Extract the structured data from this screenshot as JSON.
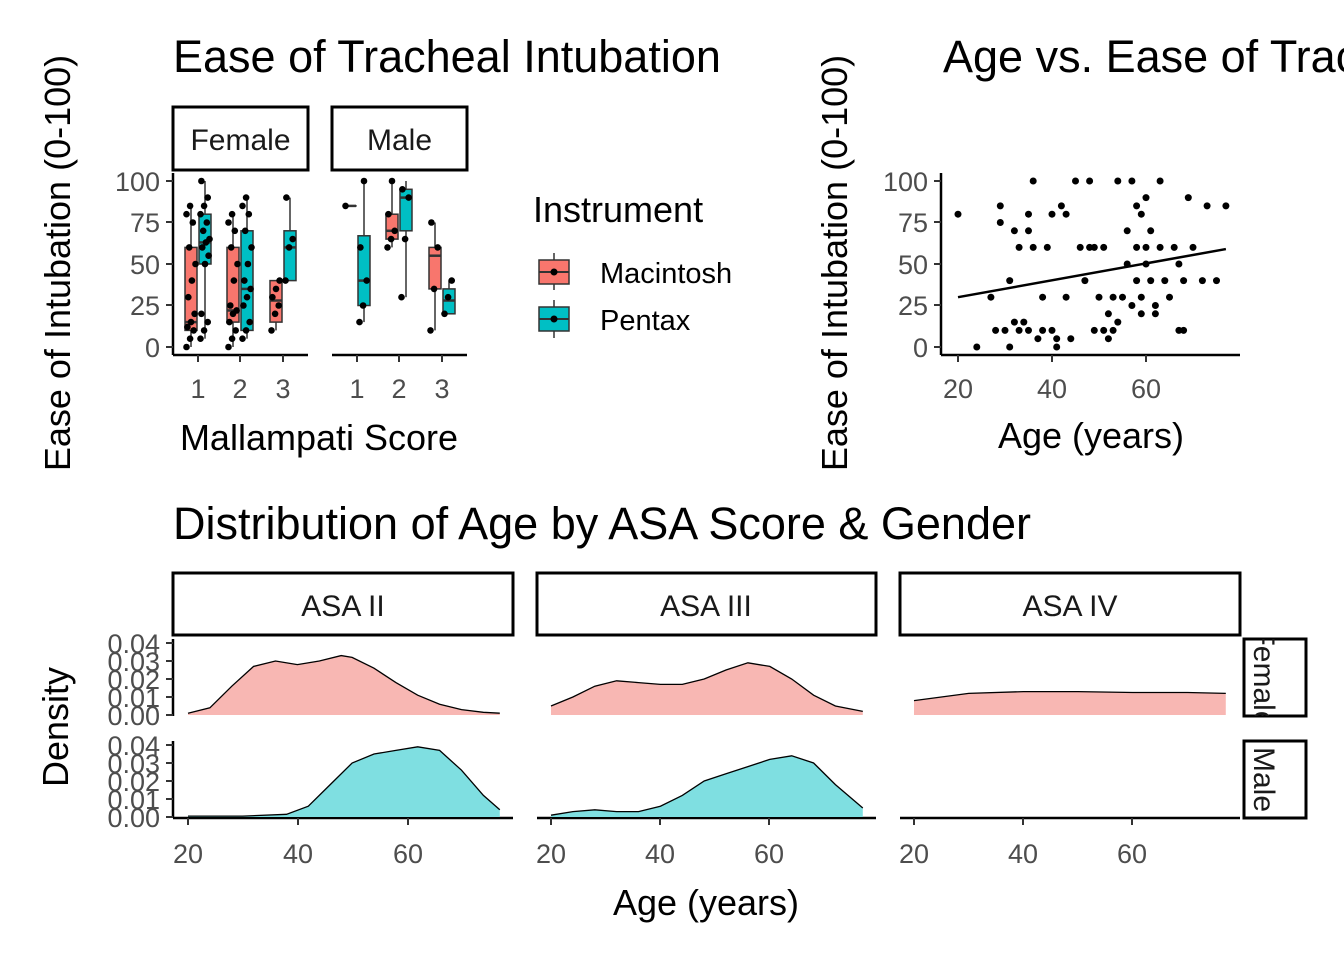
{
  "panel_a": {
    "title": "Ease of Tracheal Intubation",
    "xlabel": "Mallampati Score",
    "ylabel": "Ease of Intubation (0-100)",
    "facets": [
      "Female",
      "Male"
    ],
    "x_categories": [
      "1",
      "2",
      "3"
    ],
    "y_ticks": [
      "0",
      "25",
      "50",
      "75",
      "100"
    ],
    "legend_title": "Instrument",
    "legend_items": [
      "Macintosh",
      "Pentax"
    ]
  },
  "panel_b": {
    "title": "Age vs. Ease of Tracheal Intubation",
    "xlabel": "Age (years)",
    "ylabel": "Ease of Intubation (0-100)",
    "x_ticks": [
      "20",
      "40",
      "60"
    ],
    "y_ticks": [
      "0",
      "25",
      "50",
      "75",
      "100"
    ]
  },
  "panel_c": {
    "title": "Distribution of Age by ASA Score & Gender",
    "xlabel": "Age (years)",
    "ylabel": "Density",
    "col_facets": [
      "ASA II",
      "ASA III",
      "ASA IV"
    ],
    "row_facets": [
      "Female",
      "Male"
    ],
    "x_ticks": [
      "20",
      "40",
      "60"
    ],
    "y_ticks": [
      "0.00",
      "0.01",
      "0.02",
      "0.03",
      "0.04"
    ]
  },
  "colors": {
    "macintosh": "#F8766D",
    "pentax": "#00BFC4",
    "female_fill": "#F8B7B3",
    "male_fill": "#7FDFE1"
  },
  "chart_data": [
    {
      "type": "boxplot",
      "title": "Ease of Tracheal Intubation",
      "xlabel": "Mallampati Score",
      "ylabel": "Ease of Intubation (0-100)",
      "ylim": [
        0,
        100
      ],
      "groups": [
        {
          "facet": "Female",
          "mallampati": 1,
          "instrument": "Macintosh",
          "min": 0,
          "q1": 10,
          "median": 15,
          "q3": 60,
          "max": 85,
          "points": [
            0,
            5,
            10,
            12,
            15,
            20,
            30,
            40,
            50,
            60,
            75,
            80,
            85
          ]
        },
        {
          "facet": "Female",
          "mallampati": 1,
          "instrument": "Pentax",
          "min": 5,
          "q1": 50,
          "median": 63,
          "q3": 80,
          "max": 100,
          "points": [
            5,
            10,
            15,
            20,
            50,
            55,
            60,
            63,
            65,
            70,
            75,
            80,
            85,
            90,
            100
          ]
        },
        {
          "facet": "Female",
          "mallampati": 2,
          "instrument": "Macintosh",
          "min": 0,
          "q1": 15,
          "median": 22,
          "q3": 60,
          "max": 80,
          "points": [
            0,
            5,
            10,
            15,
            20,
            22,
            25,
            40,
            50,
            60,
            70,
            75,
            80
          ]
        },
        {
          "facet": "Female",
          "mallampati": 2,
          "instrument": "Pentax",
          "min": 5,
          "q1": 10,
          "median": 35,
          "q3": 70,
          "max": 90,
          "points": [
            5,
            10,
            15,
            25,
            30,
            35,
            40,
            50,
            60,
            70,
            80,
            85,
            90
          ]
        },
        {
          "facet": "Female",
          "mallampati": 3,
          "instrument": "Macintosh",
          "min": 10,
          "q1": 15,
          "median": 28,
          "q3": 40,
          "max": 40,
          "points": [
            10,
            20,
            25,
            30,
            35,
            40
          ]
        },
        {
          "facet": "Female",
          "mallampati": 3,
          "instrument": "Pentax",
          "min": 40,
          "q1": 40,
          "median": 60,
          "q3": 70,
          "max": 90,
          "points": [
            40,
            60,
            65,
            90
          ]
        },
        {
          "facet": "Male",
          "mallampati": 1,
          "instrument": "Macintosh",
          "min": 85,
          "q1": 85,
          "median": 85,
          "q3": 85,
          "max": 85,
          "points": [
            85
          ]
        },
        {
          "facet": "Male",
          "mallampati": 1,
          "instrument": "Pentax",
          "min": 15,
          "q1": 25,
          "median": 40,
          "q3": 67,
          "max": 100,
          "points": [
            15,
            25,
            40,
            60,
            100
          ]
        },
        {
          "facet": "Male",
          "mallampati": 2,
          "instrument": "Macintosh",
          "min": 60,
          "q1": 65,
          "median": 70,
          "q3": 80,
          "max": 100,
          "points": [
            60,
            65,
            70,
            80,
            100
          ]
        },
        {
          "facet": "Male",
          "mallampati": 2,
          "instrument": "Pentax",
          "min": 30,
          "q1": 70,
          "median": 90,
          "q3": 95,
          "max": 100,
          "points": [
            30,
            65,
            90,
            95
          ]
        },
        {
          "facet": "Male",
          "mallampati": 3,
          "instrument": "Macintosh",
          "min": 10,
          "q1": 35,
          "median": 55,
          "q3": 60,
          "max": 75,
          "points": [
            10,
            35,
            60,
            75
          ]
        },
        {
          "facet": "Male",
          "mallampati": 3,
          "instrument": "Pentax",
          "min": 20,
          "q1": 20,
          "median": 28,
          "q3": 35,
          "max": 40,
          "points": [
            20,
            30,
            40
          ]
        }
      ]
    },
    {
      "type": "scatter",
      "title": "Age vs. Ease of Tracheal Intubation",
      "xlabel": "Age (years)",
      "ylabel": "Ease of Intubation (0-100)",
      "xlim": [
        18,
        78
      ],
      "ylim": [
        0,
        100
      ],
      "points": [
        [
          20,
          80
        ],
        [
          24,
          0
        ],
        [
          27,
          30
        ],
        [
          28,
          10
        ],
        [
          29,
          85
        ],
        [
          29,
          75
        ],
        [
          30,
          10
        ],
        [
          31,
          40
        ],
        [
          31,
          0
        ],
        [
          32,
          70
        ],
        [
          32,
          15
        ],
        [
          33,
          10
        ],
        [
          33,
          60
        ],
        [
          34,
          15
        ],
        [
          35,
          10
        ],
        [
          35,
          80
        ],
        [
          35,
          70
        ],
        [
          36,
          100
        ],
        [
          36,
          60
        ],
        [
          37,
          5
        ],
        [
          38,
          30
        ],
        [
          38,
          10
        ],
        [
          39,
          60
        ],
        [
          40,
          10
        ],
        [
          40,
          80
        ],
        [
          41,
          5
        ],
        [
          41,
          0
        ],
        [
          42,
          85
        ],
        [
          43,
          30
        ],
        [
          43,
          80
        ],
        [
          44,
          5
        ],
        [
          45,
          100
        ],
        [
          46,
          60
        ],
        [
          47,
          40
        ],
        [
          48,
          60
        ],
        [
          48,
          100
        ],
        [
          49,
          10
        ],
        [
          49,
          60
        ],
        [
          50,
          30
        ],
        [
          51,
          60
        ],
        [
          51,
          10
        ],
        [
          52,
          20
        ],
        [
          52,
          5
        ],
        [
          53,
          30
        ],
        [
          53,
          10
        ],
        [
          54,
          100
        ],
        [
          54,
          15
        ],
        [
          55,
          30
        ],
        [
          56,
          70
        ],
        [
          56,
          50
        ],
        [
          57,
          100
        ],
        [
          57,
          25
        ],
        [
          58,
          60
        ],
        [
          58,
          85
        ],
        [
          58,
          40
        ],
        [
          59,
          80
        ],
        [
          59,
          30
        ],
        [
          59,
          20
        ],
        [
          60,
          90
        ],
        [
          60,
          60
        ],
        [
          60,
          50
        ],
        [
          61,
          40
        ],
        [
          61,
          70
        ],
        [
          62,
          25
        ],
        [
          62,
          20
        ],
        [
          63,
          100
        ],
        [
          63,
          60
        ],
        [
          64,
          40
        ],
        [
          65,
          30
        ],
        [
          66,
          60
        ],
        [
          67,
          10
        ],
        [
          67,
          50
        ],
        [
          68,
          10
        ],
        [
          68,
          40
        ],
        [
          69,
          90
        ],
        [
          70,
          60
        ],
        [
          72,
          40
        ],
        [
          73,
          85
        ],
        [
          75,
          40
        ],
        [
          77,
          85
        ]
      ],
      "trend_line": {
        "x": [
          20,
          77
        ],
        "y": [
          30,
          59
        ]
      }
    },
    {
      "type": "area",
      "title": "Distribution of Age by ASA Score & Gender",
      "xlabel": "Age (years)",
      "ylabel": "Density",
      "ylim": [
        0,
        0.04
      ],
      "series": [
        {
          "name": "Female",
          "facet_col": "ASA II",
          "facet_row": "Female",
          "x": [
            20,
            24,
            28,
            32,
            36,
            40,
            44,
            48,
            50,
            54,
            58,
            62,
            66,
            70,
            74,
            77
          ],
          "y": [
            0.001,
            0.004,
            0.016,
            0.027,
            0.03,
            0.028,
            0.03,
            0.033,
            0.032,
            0.026,
            0.018,
            0.011,
            0.006,
            0.003,
            0.0015,
            0.001
          ]
        },
        {
          "name": "Female",
          "facet_col": "ASA III",
          "facet_row": "Female",
          "x": [
            20,
            24,
            28,
            32,
            36,
            40,
            44,
            48,
            52,
            56,
            60,
            64,
            68,
            72,
            77
          ],
          "y": [
            0.005,
            0.01,
            0.016,
            0.019,
            0.018,
            0.017,
            0.017,
            0.02,
            0.025,
            0.029,
            0.027,
            0.02,
            0.011,
            0.005,
            0.002
          ]
        },
        {
          "name": "Female",
          "facet_col": "ASA IV",
          "facet_row": "Female",
          "x": [
            20,
            30,
            40,
            50,
            60,
            70,
            77
          ],
          "y": [
            0.008,
            0.012,
            0.013,
            0.013,
            0.0125,
            0.0125,
            0.012
          ]
        },
        {
          "name": "Male",
          "facet_col": "ASA II",
          "facet_row": "Male",
          "x": [
            20,
            30,
            38,
            42,
            46,
            50,
            54,
            58,
            62,
            66,
            70,
            74,
            77
          ],
          "y": [
            0.0005,
            0.0005,
            0.0015,
            0.006,
            0.018,
            0.03,
            0.035,
            0.037,
            0.039,
            0.037,
            0.026,
            0.012,
            0.004
          ]
        },
        {
          "name": "Male",
          "facet_col": "ASA III",
          "facet_row": "Male",
          "x": [
            20,
            24,
            28,
            32,
            36,
            40,
            44,
            48,
            52,
            56,
            60,
            64,
            68,
            72,
            77
          ],
          "y": [
            0.001,
            0.003,
            0.004,
            0.003,
            0.003,
            0.006,
            0.012,
            0.02,
            0.024,
            0.028,
            0.032,
            0.034,
            0.03,
            0.018,
            0.005
          ]
        }
      ]
    }
  ]
}
